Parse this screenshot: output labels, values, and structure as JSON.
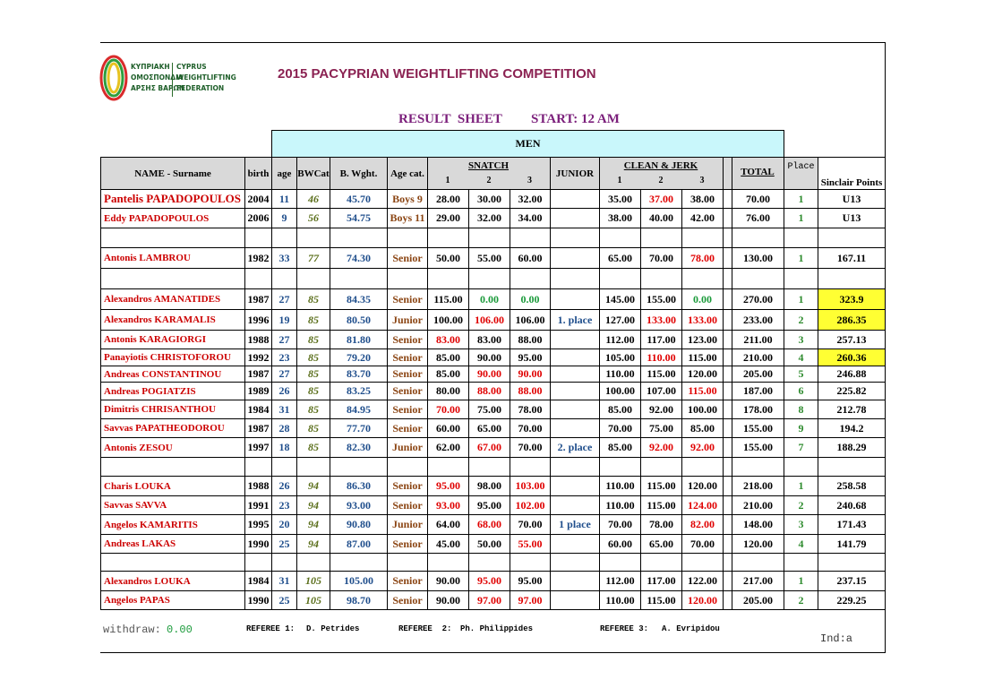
{
  "logo": {
    "greek": [
      "ΚΥΠΡΙΑΚΗ",
      "ΟΜΟΣΠΟΝΔΙΑ",
      "ΑΡΣΗΣ ΒΑΡΩΝ"
    ],
    "english": [
      "CYPRUS",
      "WEIGHTLIFTING",
      "FEDERATION"
    ]
  },
  "header": {
    "title": "2015 PACYPRIAN WEIGHTLIFTING COMPETITION",
    "sheet": "RESULT  SHEET",
    "start": "START: 12 AM",
    "section": "MEN"
  },
  "table": {
    "columns": {
      "name": "NAME - Surname",
      "birth": "birth",
      "age": "age",
      "bwcat": "BWCat",
      "bwght": "B. Wght.",
      "agecat": "Age cat.",
      "snatch": "SNATCH",
      "snatch_attempts": [
        "1",
        "2",
        "3"
      ],
      "junior": "JUNIOR",
      "cj": "CLEAN & JERK",
      "cj_attempts": [
        "1",
        "2",
        "3"
      ],
      "total": "TOTAL",
      "place": "Place",
      "sinclair": "Sinclair Points"
    },
    "groups": [
      [
        [
          "Pantelis PAPADOPOULOS",
          "2004",
          "11",
          "46",
          "45.70",
          "Boys 9",
          "28.00",
          "30.00",
          "32.00",
          null,
          "35.00",
          "37.00",
          "38.00",
          "70.00",
          "1",
          "U13"
        ],
        [
          "Eddy PAPADOPOULOS",
          "2006",
          "9",
          "56",
          "54.75",
          "Boys 11",
          "29.00",
          "32.00",
          "34.00",
          null,
          "38.00",
          "40.00",
          "42.00",
          "76.00",
          "1",
          "U13"
        ]
      ],
      [
        [
          "Antonis LAMBROU",
          "1982",
          "33",
          "77",
          "74.30",
          "Senior",
          "50.00",
          "55.00",
          "60.00",
          null,
          "65.00",
          "70.00",
          "78.00",
          "130.00",
          "1",
          "167.11"
        ]
      ],
      [
        [
          "Alexandros AMANATIDES",
          "1987",
          "27",
          "85",
          "84.35",
          "Senior",
          "115.00",
          "0.00",
          "0.00",
          null,
          "145.00",
          "155.00",
          "0.00",
          "270.00",
          "1",
          "323.9"
        ],
        [
          "Alexandros KARAMALIS",
          "1996",
          "19",
          "85",
          "80.50",
          "Junior",
          "100.00",
          "106.00",
          "106.00",
          "1. place",
          "127.00",
          "133.00",
          "133.00",
          "233.00",
          "2",
          "286.35"
        ],
        [
          "Antonis KARAGIORGI",
          "1988",
          "27",
          "85",
          "81.80",
          "Senior",
          "83.00",
          "83.00",
          "88.00",
          null,
          "112.00",
          "117.00",
          "123.00",
          "211.00",
          "3",
          "257.13"
        ],
        [
          "Panayiotis CHRISTOFOROU",
          "1992",
          "23",
          "85",
          "79.20",
          "Senior",
          "85.00",
          "90.00",
          "95.00",
          null,
          "105.00",
          "110.00",
          "115.00",
          "210.00",
          "4",
          "260.36"
        ],
        [
          "Andreas CONSTANTINOU",
          "1987",
          "27",
          "85",
          "83.70",
          "Senior",
          "85.00",
          "90.00",
          "90.00",
          null,
          "110.00",
          "115.00",
          "120.00",
          "205.00",
          "5",
          "246.88"
        ],
        [
          "Andreas POGIATZIS",
          "1989",
          "26",
          "85",
          "83.25",
          "Senior",
          "80.00",
          "88.00",
          "88.00",
          null,
          "100.00",
          "107.00",
          "115.00",
          "187.00",
          "6",
          "225.82"
        ],
        [
          "Dimitris CHRISANTHOU",
          "1984",
          "31",
          "85",
          "84.95",
          "Senior",
          "70.00",
          "75.00",
          "78.00",
          null,
          "85.00",
          "92.00",
          "100.00",
          "178.00",
          "8",
          "212.78"
        ],
        [
          "Savvas PAPATHEODOROU",
          "1987",
          "28",
          "85",
          "77.70",
          "Senior",
          "60.00",
          "65.00",
          "70.00",
          null,
          "70.00",
          "75.00",
          "85.00",
          "155.00",
          "9",
          "194.2"
        ],
        [
          "Antonis ZESOU",
          "1997",
          "18",
          "85",
          "82.30",
          "Junior",
          "62.00",
          "67.00",
          "70.00",
          "2. place",
          "85.00",
          "92.00",
          "92.00",
          "155.00",
          "7",
          "188.29"
        ]
      ],
      [
        [
          "Charis LOUKA",
          "1988",
          "26",
          "94",
          "86.30",
          "Senior",
          "95.00",
          "98.00",
          "103.00",
          null,
          "110.00",
          "115.00",
          "120.00",
          "218.00",
          "1",
          "258.58"
        ],
        [
          "Savvas SAVVA",
          "1991",
          "23",
          "94",
          "93.00",
          "Senior",
          "93.00",
          "95.00",
          "102.00",
          null,
          "110.00",
          "115.00",
          "124.00",
          "210.00",
          "2",
          "240.68"
        ],
        [
          "Angelos KAMARITIS",
          "1995",
          "20",
          "94",
          "90.80",
          "Junior",
          "64.00",
          "68.00",
          "70.00",
          "1 place",
          "70.00",
          "78.00",
          "82.00",
          "148.00",
          "3",
          "171.43"
        ],
        [
          "Andreas LAKAS",
          "1990",
          "25",
          "94",
          "87.00",
          "Senior",
          "45.00",
          "50.00",
          "55.00",
          null,
          "60.00",
          "65.00",
          "70.00",
          "120.00",
          "4",
          "141.79"
        ]
      ],
      [
        [
          "Alexandros LOUKA",
          "1984",
          "31",
          "105",
          "105.00",
          "Senior",
          "90.00",
          "95.00",
          "95.00",
          null,
          "112.00",
          "117.00",
          "122.00",
          "217.00",
          "1",
          "237.15"
        ],
        [
          "Angelos PAPAS",
          "1990",
          "25",
          "105",
          "98.70",
          "Senior",
          "90.00",
          "97.00",
          "97.00",
          null,
          "110.00",
          "115.00",
          "120.00",
          "205.00",
          "2",
          "229.25"
        ]
      ]
    ]
  },
  "footer": {
    "withdraw_label": "withdraw:",
    "withdraw_value": "0.00",
    "referees": [
      {
        "label": "REFEREE 1:",
        "name": "D. Petrides"
      },
      {
        "label": "REFEREE  2:",
        "name": "Ph. Philippides"
      },
      {
        "label": "REFEREE 3:",
        "name": "A. Evripidou"
      }
    ],
    "ind": "Ind:a"
  }
}
